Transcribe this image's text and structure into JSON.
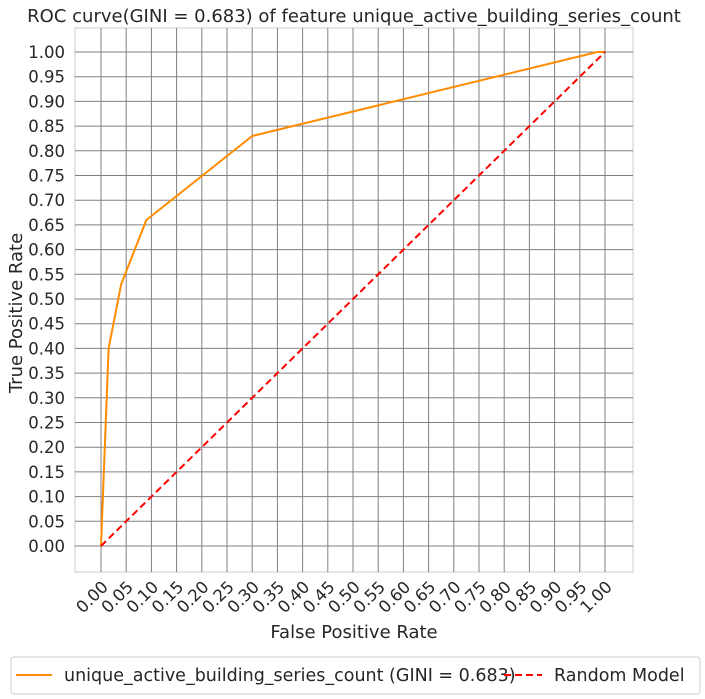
{
  "chart_data": {
    "type": "line",
    "title": "ROC curve(GINI = 0.683) of feature unique_active_building_series_count",
    "xlabel": "False Positive Rate",
    "ylabel": "True Positive Rate",
    "xlim": [
      0.0,
      1.0
    ],
    "ylim": [
      0.0,
      1.0
    ],
    "x_ticks": [
      "0.00",
      "0.05",
      "0.10",
      "0.15",
      "0.20",
      "0.25",
      "0.30",
      "0.35",
      "0.40",
      "0.45",
      "0.50",
      "0.55",
      "0.60",
      "0.65",
      "0.70",
      "0.75",
      "0.80",
      "0.85",
      "0.90",
      "0.95",
      "1.00"
    ],
    "y_ticks": [
      "0.00",
      "0.05",
      "0.10",
      "0.15",
      "0.20",
      "0.25",
      "0.30",
      "0.35",
      "0.40",
      "0.45",
      "0.50",
      "0.55",
      "0.60",
      "0.65",
      "0.70",
      "0.75",
      "0.80",
      "0.85",
      "0.90",
      "0.95",
      "1.00"
    ],
    "grid": true,
    "legend_position": "bottom-center",
    "series": [
      {
        "name": "unique_active_building_series_count (GINI = 0.683)",
        "color": "#ff8c00",
        "style": "solid",
        "x": [
          0.0,
          0.015,
          0.04,
          0.09,
          0.3,
          0.985,
          1.0
        ],
        "y": [
          0.0,
          0.4,
          0.53,
          0.66,
          0.83,
          1.0,
          1.0
        ]
      },
      {
        "name": "Random Model",
        "color": "#ff0000",
        "style": "dashed",
        "x": [
          0.0,
          1.0
        ],
        "y": [
          0.0,
          1.0
        ]
      }
    ]
  }
}
